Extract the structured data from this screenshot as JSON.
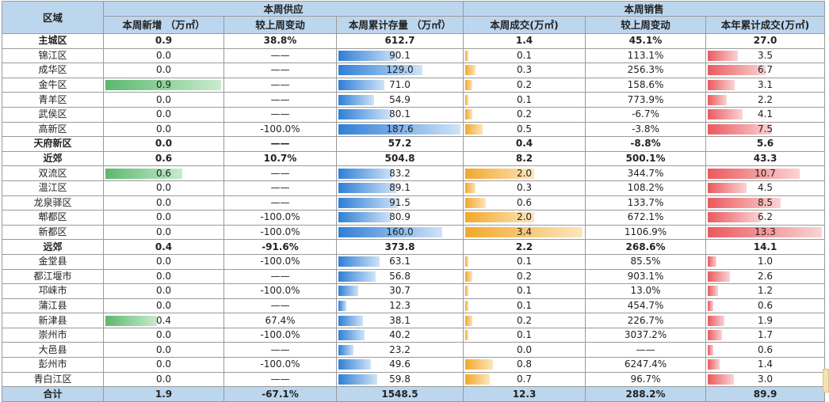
{
  "header": {
    "region": "区域",
    "supply_group": "本周供应",
    "sales_group": "本周销售",
    "cols": [
      "本周新增 （万㎡）",
      "较上周变动",
      "本周累计存量 （万㎡）",
      "本周成交(万㎡)",
      "较上周变动",
      "本年累计成交(万㎡)"
    ]
  },
  "colors": {
    "header_bg": "#bcd6ee",
    "green_bar": "#5cb86e",
    "blue_bar": "#2f7fd6",
    "orange_bar": "#f2a82a",
    "red_bar": "#ea5a5e"
  },
  "bar_max": {
    "new": 0.9,
    "stock": 187.6,
    "deal": 3.4,
    "ytd": 13.3
  },
  "rows": [
    {
      "name": "主城区",
      "sub": true,
      "new": "0.9",
      "new_change": "38.8%",
      "stock": "612.7",
      "deal": "1.4",
      "deal_change": "45.1%",
      "ytd": "27.0"
    },
    {
      "name": "锦江区",
      "new": "0.0",
      "new_change": "——",
      "stock": "90.1",
      "deal": "0.1",
      "deal_change": "113.1%",
      "ytd": "3.5"
    },
    {
      "name": "成华区",
      "new": "0.0",
      "new_change": "——",
      "stock": "129.0",
      "deal": "0.3",
      "deal_change": "256.3%",
      "ytd": "6.7"
    },
    {
      "name": "金牛区",
      "new": "0.9",
      "new_change": "——",
      "stock": "71.0",
      "deal": "0.2",
      "deal_change": "158.6%",
      "ytd": "3.1"
    },
    {
      "name": "青羊区",
      "new": "0.0",
      "new_change": "——",
      "stock": "54.9",
      "deal": "0.1",
      "deal_change": "773.9%",
      "ytd": "2.2"
    },
    {
      "name": "武侯区",
      "new": "0.0",
      "new_change": "——",
      "stock": "80.1",
      "deal": "0.2",
      "deal_change": "-6.7%",
      "ytd": "4.1"
    },
    {
      "name": "高新区",
      "new": "0.0",
      "new_change": "-100.0%",
      "stock": "187.6",
      "deal": "0.5",
      "deal_change": "-3.8%",
      "ytd": "7.5"
    },
    {
      "name": "天府新区",
      "sub": true,
      "new": "0.0",
      "new_change": "——",
      "stock": "57.2",
      "deal": "0.4",
      "deal_change": "-8.8%",
      "ytd": "5.6"
    },
    {
      "name": "近郊",
      "sub": true,
      "new": "0.6",
      "new_change": "10.7%",
      "stock": "504.8",
      "deal": "8.2",
      "deal_change": "500.1%",
      "ytd": "43.3"
    },
    {
      "name": "双流区",
      "new": "0.6",
      "new_change": "——",
      "stock": "83.2",
      "deal": "2.0",
      "deal_change": "344.7%",
      "ytd": "10.7"
    },
    {
      "name": "温江区",
      "new": "0.0",
      "new_change": "——",
      "stock": "89.1",
      "deal": "0.3",
      "deal_change": "108.2%",
      "ytd": "4.5"
    },
    {
      "name": "龙泉驿区",
      "new": "0.0",
      "new_change": "——",
      "stock": "91.5",
      "deal": "0.6",
      "deal_change": "133.7%",
      "ytd": "8.5"
    },
    {
      "name": "郫都区",
      "new": "0.0",
      "new_change": "-100.0%",
      "stock": "80.9",
      "deal": "2.0",
      "deal_change": "672.1%",
      "ytd": "6.2"
    },
    {
      "name": "新都区",
      "new": "0.0",
      "new_change": "-100.0%",
      "stock": "160.0",
      "deal": "3.4",
      "deal_change": "1106.9%",
      "ytd": "13.3"
    },
    {
      "name": "远郊",
      "sub": true,
      "new": "0.4",
      "new_change": "-91.6%",
      "stock": "373.8",
      "deal": "2.2",
      "deal_change": "268.6%",
      "ytd": "14.1"
    },
    {
      "name": "金堂县",
      "new": "0.0",
      "new_change": "-100.0%",
      "stock": "63.1",
      "deal": "0.1",
      "deal_change": "85.5%",
      "ytd": "1.0"
    },
    {
      "name": "都江堰市",
      "new": "0.0",
      "new_change": "——",
      "stock": "56.8",
      "deal": "0.2",
      "deal_change": "903.1%",
      "ytd": "2.6"
    },
    {
      "name": "邛崃市",
      "new": "0.0",
      "new_change": "-100.0%",
      "stock": "30.7",
      "deal": "0.1",
      "deal_change": "13.0%",
      "ytd": "1.2"
    },
    {
      "name": "蒲江县",
      "new": "0.0",
      "new_change": "——",
      "stock": "12.3",
      "deal": "0.1",
      "deal_change": "454.7%",
      "ytd": "0.6"
    },
    {
      "name": "新津县",
      "new": "0.4",
      "new_change": "67.4%",
      "stock": "38.1",
      "deal": "0.2",
      "deal_change": "226.7%",
      "ytd": "1.9"
    },
    {
      "name": "崇州市",
      "new": "0.0",
      "new_change": "-100.0%",
      "stock": "40.2",
      "deal": "0.1",
      "deal_change": "3037.2%",
      "ytd": "1.7"
    },
    {
      "name": "大邑县",
      "new": "0.0",
      "new_change": "——",
      "stock": "23.2",
      "deal": "0.0",
      "deal_change": "——",
      "ytd": "0.6"
    },
    {
      "name": "彭州市",
      "new": "0.0",
      "new_change": "-100.0%",
      "stock": "49.6",
      "deal": "0.8",
      "deal_change": "6247.4%",
      "ytd": "1.4"
    },
    {
      "name": "青白江区",
      "new": "0.0",
      "new_change": "——",
      "stock": "59.8",
      "deal": "0.7",
      "deal_change": "96.7%",
      "ytd": "3.0"
    }
  ],
  "total": {
    "name": "合计",
    "new": "1.9",
    "new_change": "-67.1%",
    "stock": "1548.5",
    "deal": "12.3",
    "deal_change": "288.2%",
    "ytd": "89.9"
  }
}
